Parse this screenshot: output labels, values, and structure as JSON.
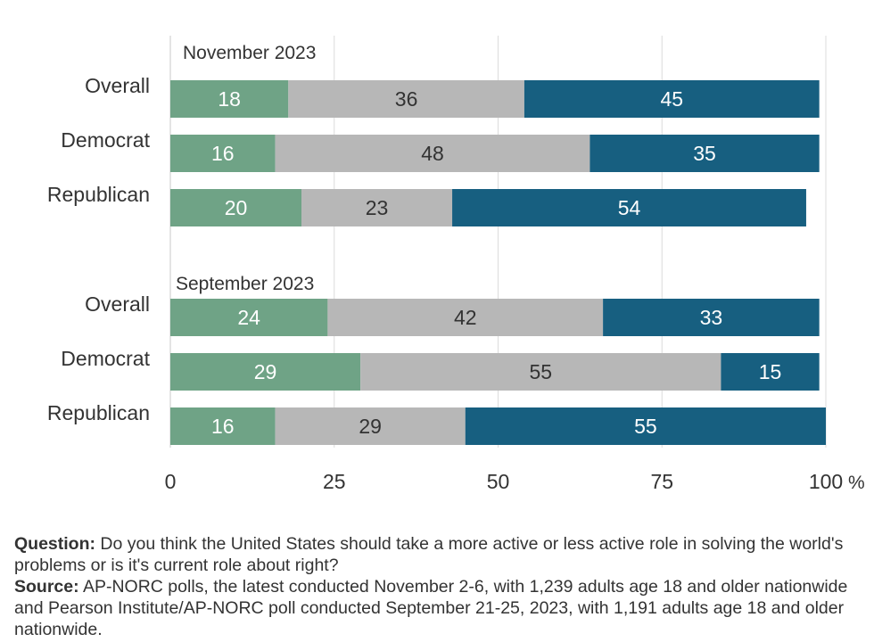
{
  "chart_data": {
    "type": "bar",
    "orientation": "horizontal",
    "stacked": true,
    "xlim": [
      0,
      100
    ],
    "x_ticks": [
      "0",
      "25",
      "50",
      "75",
      "100"
    ],
    "x_tick_values": [
      0,
      25,
      50,
      75,
      100
    ],
    "x_unit": "%",
    "grid": true,
    "colors": [
      "#6fa386",
      "#b7b7b7",
      "#175f80"
    ],
    "groups": [
      {
        "title": "November 2023",
        "rows": [
          {
            "label": "Overall",
            "values": [
              18,
              36,
              45
            ]
          },
          {
            "label": "Democrat",
            "values": [
              16,
              48,
              35
            ]
          },
          {
            "label": "Republican",
            "values": [
              20,
              23,
              54
            ]
          }
        ]
      },
      {
        "title": "September 2023",
        "rows": [
          {
            "label": "Overall",
            "values": [
              24,
              42,
              33
            ]
          },
          {
            "label": "Democrat",
            "values": [
              29,
              55,
              15
            ]
          },
          {
            "label": "Republican",
            "values": [
              16,
              29,
              55
            ]
          }
        ]
      }
    ]
  },
  "notes": {
    "question_label": "Question:",
    "question_text": "Do you think the United States should take a more active or less active role in solving the world's problems or is it's current role about right?",
    "source_label": "Source:",
    "source_text": "AP-NORC polls, the latest conducted November 2-6, with 1,239 adults age 18 and older nationwide and Pearson Institute/AP-NORC poll conducted September 21-25, 2023, with 1,191 adults age 18 and older nationwide."
  }
}
